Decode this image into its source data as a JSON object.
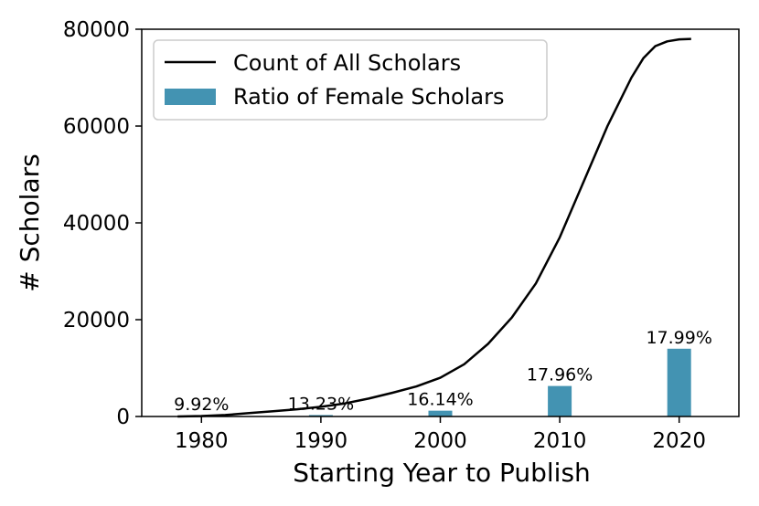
{
  "chart_data": {
    "type": "bar+line",
    "xlabel": "Starting Year to Publish",
    "ylabel": "# Scholars",
    "xlim": [
      1975,
      2025
    ],
    "ylim": [
      0,
      80000
    ],
    "xticks": [
      "1980",
      "1990",
      "2000",
      "2010",
      "2020"
    ],
    "yticks": [
      "0",
      "20000",
      "40000",
      "60000",
      "80000"
    ],
    "legend": {
      "position": "top-left",
      "entries": [
        "Count of All Scholars",
        "Ratio of Female Scholars"
      ]
    },
    "line_series": {
      "name": "Count of All Scholars",
      "color": "#000000",
      "x": [
        1978,
        1980,
        1982,
        1984,
        1986,
        1988,
        1990,
        1992,
        1994,
        1996,
        1998,
        2000,
        2002,
        2004,
        2006,
        2008,
        2010,
        2012,
        2014,
        2016,
        2017,
        2018,
        2019,
        2020,
        2021
      ],
      "y": [
        0,
        100,
        300,
        700,
        1100,
        1500,
        2000,
        2700,
        3700,
        4900,
        6200,
        8000,
        10800,
        15000,
        20500,
        27500,
        37000,
        48500,
        60000,
        70000,
        74000,
        76500,
        77500,
        77900,
        78000
      ]
    },
    "bar_series": {
      "name": "Ratio of Female Scholars",
      "color": "#4393b2",
      "x": [
        1980,
        1990,
        2000,
        2010,
        2020
      ],
      "values": [
        200,
        300,
        1200,
        6300,
        14000
      ],
      "labels": [
        "9.92%",
        "13.23%",
        "16.14%",
        "17.96%",
        "17.99%"
      ]
    }
  }
}
